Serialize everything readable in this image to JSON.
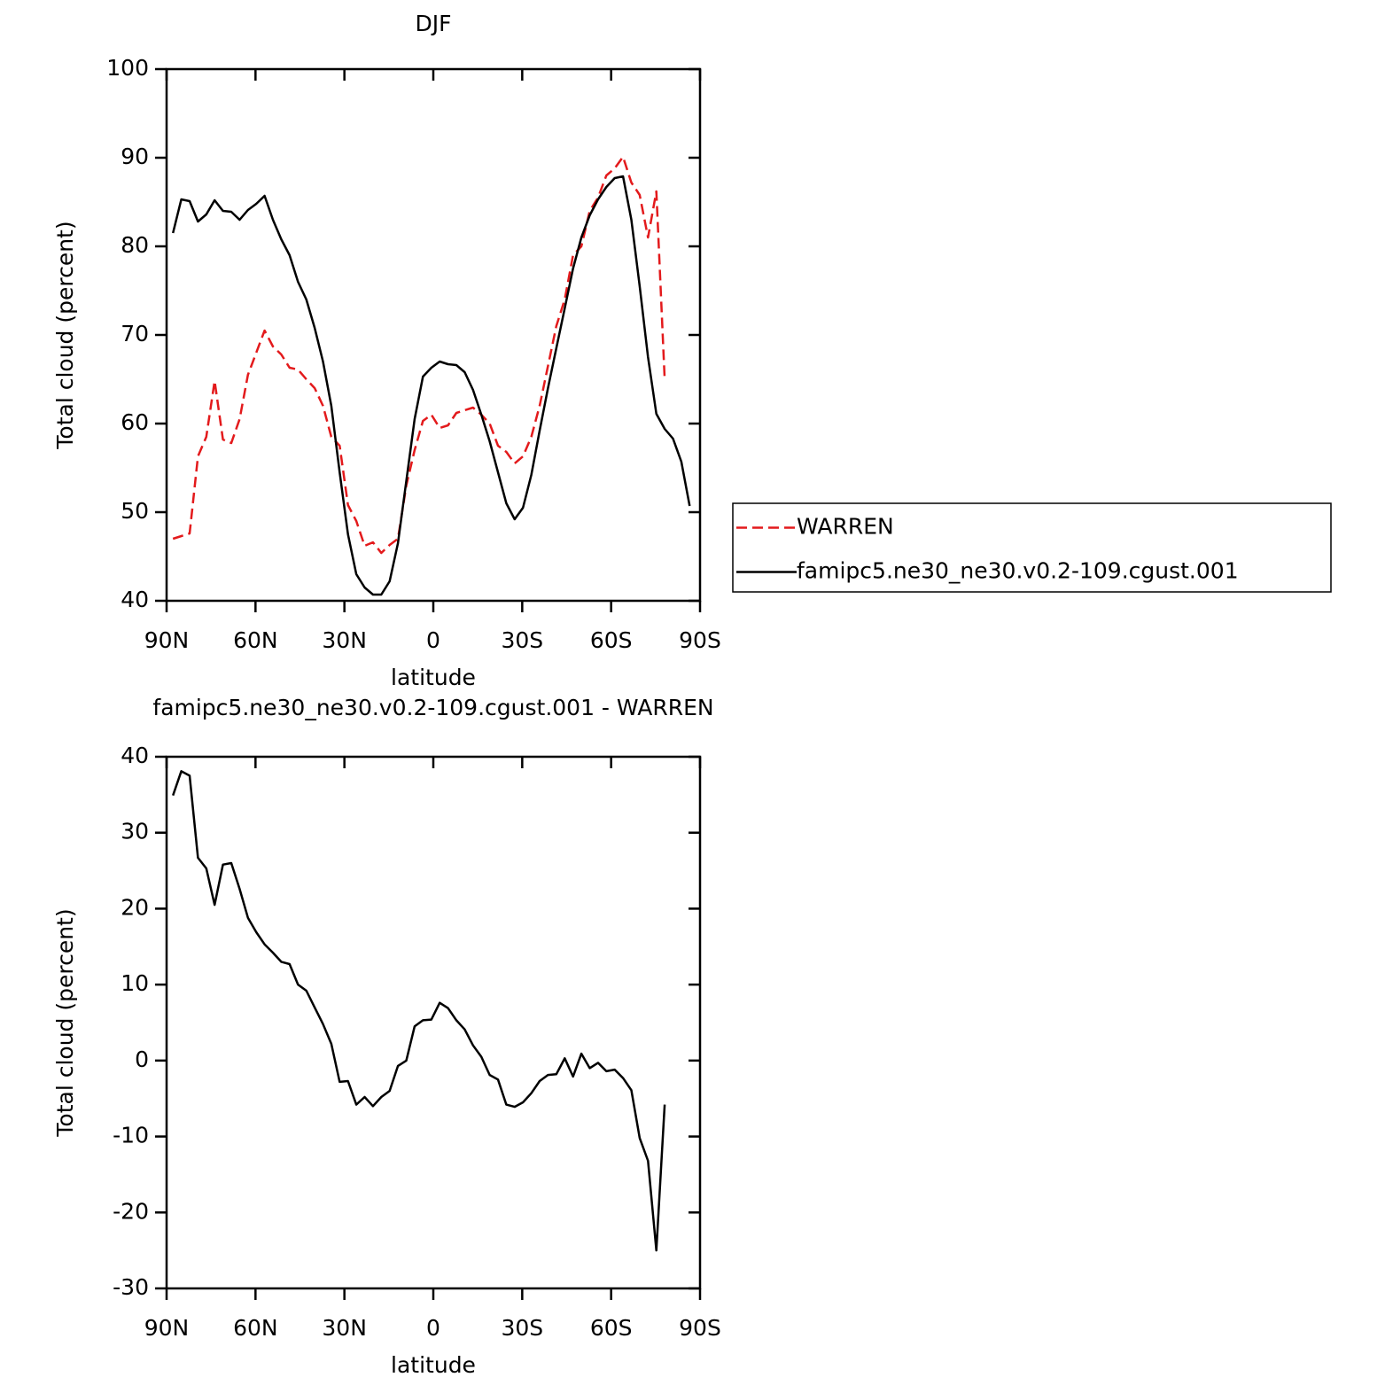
{
  "chart_data": [
    {
      "type": "line",
      "title": "DJF",
      "xlabel": "latitude",
      "ylabel": "Total cloud (percent)",
      "x": [
        87.86,
        85.05,
        82.24,
        79.42,
        76.61,
        73.8,
        70.99,
        68.17,
        65.36,
        62.55,
        59.74,
        56.92,
        54.11,
        51.3,
        48.49,
        45.67,
        42.86,
        40.05,
        37.24,
        34.42,
        31.61,
        28.8,
        25.99,
        23.17,
        20.36,
        17.55,
        14.74,
        11.92,
        9.11,
        6.3,
        3.49,
        0.67,
        -2.14,
        -4.95,
        -7.76,
        -10.58,
        -13.39,
        -16.2,
        -19.01,
        -21.83,
        -24.64,
        -27.45,
        -30.26,
        -33.08,
        -35.89,
        -38.7,
        -41.51,
        -44.33,
        -47.14,
        -49.95,
        -52.76,
        -55.58,
        -58.39,
        -61.2,
        -64.01,
        -66.83,
        -69.64,
        -72.45,
        -75.26,
        -78.08,
        -80.89,
        -83.7,
        -86.51
      ],
      "series": [
        {
          "name": "WARREN",
          "color": "#e31a1c",
          "dashed": true,
          "values": [
            47,
            47.3,
            47.6,
            56.3,
            58.5,
            64.8,
            58.2,
            57.8,
            60.5,
            65.5,
            68,
            70.5,
            68.7,
            67.8,
            66.3,
            66.1,
            65,
            64,
            62,
            58.5,
            57.5,
            50.8,
            49,
            46.2,
            46.6,
            45.4,
            46.3,
            47,
            53,
            57,
            60.3,
            61,
            59.5,
            59.8,
            61.2,
            61.5,
            61.8,
            61,
            60,
            57.5,
            56.8,
            55.5,
            56.3,
            58.5,
            62,
            66.5,
            71,
            74,
            79,
            80,
            84,
            85.5,
            88,
            88.8,
            90.1,
            87.2,
            85.8,
            81,
            86.2,
            65,
            null,
            null,
            null
          ]
        },
        {
          "name": "famipc5.ne30_ne30.v0.2-109.cgust.001",
          "color": "#000000",
          "dashed": false,
          "values": [
            81.5,
            85.3,
            85.1,
            82.8,
            83.6,
            85.2,
            84,
            83.9,
            83,
            84.1,
            84.8,
            85.7,
            83,
            80.8,
            79,
            76,
            74,
            70.8,
            67,
            62,
            54.5,
            47.5,
            43,
            41.5,
            40.7,
            40.7,
            42.2,
            46.5,
            53.5,
            60.5,
            65.3,
            66.3,
            67,
            66.7,
            66.6,
            65.8,
            63.8,
            61,
            58,
            54.5,
            51,
            49.2,
            50.5,
            54.2,
            59.2,
            64,
            68.5,
            73,
            77.5,
            81,
            83.5,
            85.3,
            86.7,
            87.7,
            87.9,
            83,
            75.5,
            67.5,
            61.1,
            59.4,
            58.3,
            55.7,
            50.7
          ]
        }
      ],
      "xlim": [
        90,
        -90
      ],
      "xticks": [
        {
          "value": 90,
          "label": "90N"
        },
        {
          "value": 60,
          "label": "60N"
        },
        {
          "value": 30,
          "label": "30N"
        },
        0,
        {
          "value": -30,
          "label": "30S"
        },
        {
          "value": -60,
          "label": "60S"
        },
        {
          "value": -90,
          "label": "90S"
        }
      ],
      "ylim": [
        40,
        100
      ],
      "yticks": [
        40,
        50,
        60,
        70,
        80,
        90,
        100
      ],
      "grid": false,
      "legend": "outside right"
    },
    {
      "type": "line",
      "title": "famipc5.ne30_ne30.v0.2-109.cgust.001 - WARREN",
      "xlabel": "latitude",
      "ylabel": "Total cloud (percent)",
      "x": [
        87.86,
        85.05,
        82.24,
        79.42,
        76.61,
        73.8,
        70.99,
        68.17,
        65.36,
        62.55,
        59.74,
        56.92,
        54.11,
        51.3,
        48.49,
        45.67,
        42.86,
        40.05,
        37.24,
        34.42,
        31.61,
        28.8,
        25.99,
        23.17,
        20.36,
        17.55,
        14.74,
        11.92,
        9.11,
        6.3,
        3.49,
        0.67,
        -2.14,
        -4.95,
        -7.76,
        -10.58,
        -13.39,
        -16.2,
        -19.01,
        -21.83,
        -24.64,
        -27.45,
        -30.26,
        -33.08,
        -35.89,
        -38.7,
        -41.51,
        -44.33,
        -47.14,
        -49.95,
        -52.76,
        -55.58,
        -58.39,
        -61.2,
        -64.01,
        -66.83,
        -69.64,
        -72.45,
        -75.26,
        -78.08
      ],
      "series": [
        {
          "color": "#000000",
          "dashed": false,
          "values": [
            34.9,
            38.1,
            37.5,
            26.7,
            25.3,
            20.5,
            25.8,
            26,
            22.6,
            18.8,
            16.9,
            15.3,
            14.2,
            13,
            12.7,
            10,
            9.2,
            7,
            4.8,
            2.2,
            -2.8,
            -2.7,
            -5.8,
            -4.8,
            -6,
            -4.8,
            -4,
            -0.7,
            0,
            4.5,
            5.3,
            5.4,
            7.6,
            6.9,
            5.3,
            4.1,
            2,
            0.5,
            -1.9,
            -2.5,
            -5.8,
            -6.1,
            -5.5,
            -4.3,
            -2.7,
            -1.9,
            -1.8,
            0.3,
            -2.1,
            0.9,
            -1,
            -0.3,
            -1.4,
            -1.2,
            -2.3,
            -3.9,
            -10.2,
            -13.2,
            -25,
            -5.8
          ]
        }
      ],
      "xlim": [
        90,
        -90
      ],
      "xticks": [
        {
          "value": 90,
          "label": "90N"
        },
        {
          "value": 60,
          "label": "60N"
        },
        {
          "value": 30,
          "label": "30N"
        },
        0,
        {
          "value": -30,
          "label": "30S"
        },
        {
          "value": -60,
          "label": "60S"
        },
        {
          "value": -90,
          "label": "90S"
        }
      ],
      "ylim": [
        -30,
        40
      ],
      "yticks": [
        -30,
        -20,
        -10,
        0,
        10,
        20,
        30,
        40
      ],
      "grid": false
    }
  ]
}
